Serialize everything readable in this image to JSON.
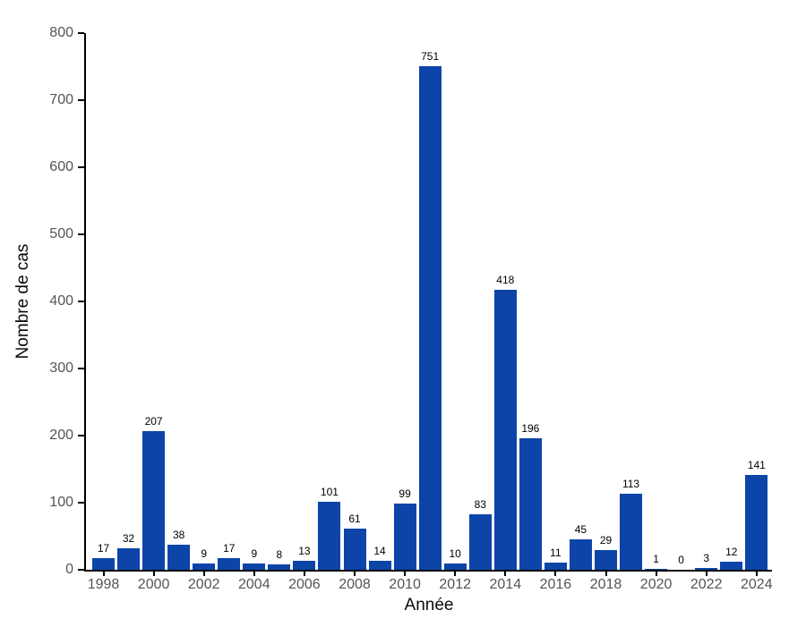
{
  "chart_data": {
    "type": "bar",
    "title": "",
    "xlabel": "Année",
    "ylabel": "Nombre de cas",
    "categories": [
      "1998",
      "1999",
      "2000",
      "2001",
      "2002",
      "2003",
      "2004",
      "2005",
      "2006",
      "2007",
      "2008",
      "2009",
      "2010",
      "2011",
      "2012",
      "2013",
      "2014",
      "2015",
      "2016",
      "2017",
      "2018",
      "2019",
      "2020",
      "2021",
      "2022",
      "2023",
      "2024"
    ],
    "values": [
      17,
      32,
      207,
      38,
      9,
      17,
      9,
      8,
      13,
      101,
      61,
      14,
      99,
      751,
      10,
      83,
      418,
      196,
      11,
      45,
      29,
      113,
      1,
      0,
      3,
      12,
      141
    ],
    "show_value_labels": true,
    "ylim": [
      0,
      800
    ],
    "yticks": [
      0,
      100,
      200,
      300,
      400,
      500,
      600,
      700,
      800
    ],
    "xtick_labels": [
      "1998",
      "2000",
      "2002",
      "2004",
      "2006",
      "2008",
      "2010",
      "2012",
      "2014",
      "2016",
      "2018",
      "2020",
      "2022",
      "2024"
    ],
    "bar_color": "#0c44a8",
    "axis_color": "#000000",
    "tick_label_color": "#545454",
    "grid": false,
    "legend": null
  }
}
